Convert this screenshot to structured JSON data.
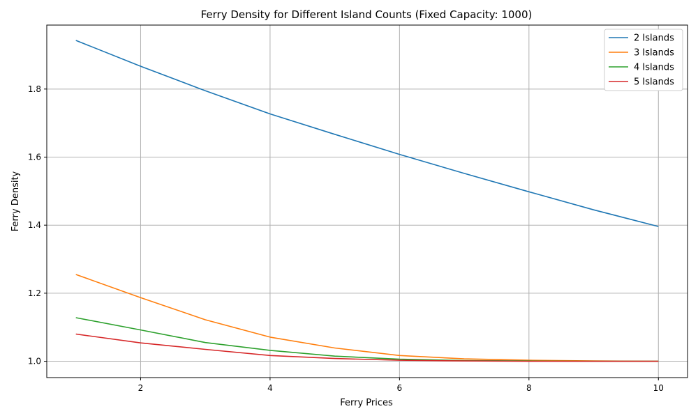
{
  "chart_data": {
    "type": "line",
    "title": "Ferry Density for Different Island Counts (Fixed Capacity: 1000)",
    "xlabel": "Ferry Prices",
    "ylabel": "Ferry Density",
    "xlim": [
      0.55,
      10.45
    ],
    "ylim": [
      0.952,
      1.988
    ],
    "xticks": [
      2,
      4,
      6,
      8,
      10
    ],
    "yticks": [
      1.0,
      1.2,
      1.4,
      1.6,
      1.8
    ],
    "grid": true,
    "legend_position": "top-right",
    "x": [
      1,
      2,
      3,
      4,
      5,
      6,
      7,
      8,
      9,
      10
    ],
    "series": [
      {
        "name": "2 Islands",
        "color": "#1f77b4",
        "values": [
          1.943,
          1.867,
          1.795,
          1.727,
          1.667,
          1.608,
          1.552,
          1.498,
          1.445,
          1.396
        ]
      },
      {
        "name": "3 Islands",
        "color": "#ff7f0e",
        "values": [
          1.255,
          1.187,
          1.122,
          1.071,
          1.039,
          1.017,
          1.007,
          1.003,
          1.001,
          1.0
        ]
      },
      {
        "name": "4 Islands",
        "color": "#2ca02c",
        "values": [
          1.128,
          1.092,
          1.055,
          1.032,
          1.015,
          1.006,
          1.002,
          1.001,
          1.0,
          1.0
        ]
      },
      {
        "name": "5 Islands",
        "color": "#d62728",
        "values": [
          1.08,
          1.054,
          1.035,
          1.017,
          1.008,
          1.003,
          1.001,
          1.0,
          1.0,
          1.0
        ]
      }
    ]
  }
}
